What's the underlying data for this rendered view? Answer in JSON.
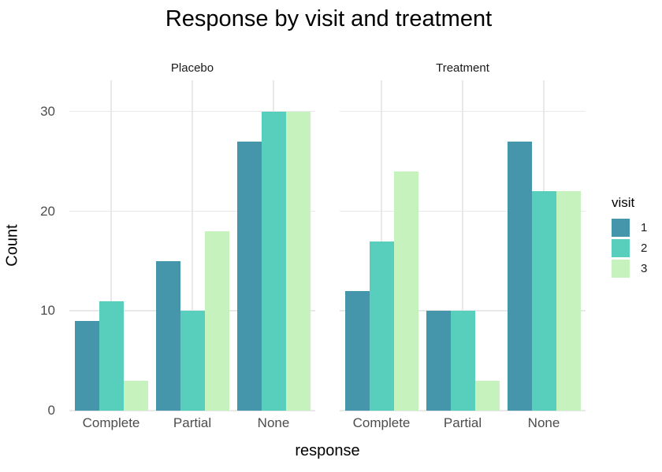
{
  "chart_data": {
    "type": "bar",
    "title": "Response by visit and treatment",
    "xlabel": "response",
    "ylabel": "Count",
    "categories": [
      "Complete",
      "Partial",
      "None"
    ],
    "yticks": [
      0,
      10,
      20,
      30
    ],
    "ylim": [
      0,
      33.2
    ],
    "grid": "major-only",
    "legend": {
      "title": "visit",
      "entries": [
        "1",
        "2",
        "3"
      ],
      "position": "right"
    },
    "series_colors": [
      "#4596ab",
      "#58cfbc",
      "#c6f2be"
    ],
    "facets": [
      {
        "label": "Placebo",
        "series": [
          {
            "name": "1",
            "values": [
              9,
              15,
              27
            ]
          },
          {
            "name": "2",
            "values": [
              11,
              10,
              30
            ]
          },
          {
            "name": "3",
            "values": [
              3,
              18,
              30
            ]
          }
        ]
      },
      {
        "label": "Treatment",
        "series": [
          {
            "name": "1",
            "values": [
              12,
              10,
              27
            ]
          },
          {
            "name": "2",
            "values": [
              17,
              10,
              22
            ]
          },
          {
            "name": "3",
            "values": [
              24,
              3,
              22
            ]
          }
        ]
      }
    ]
  }
}
